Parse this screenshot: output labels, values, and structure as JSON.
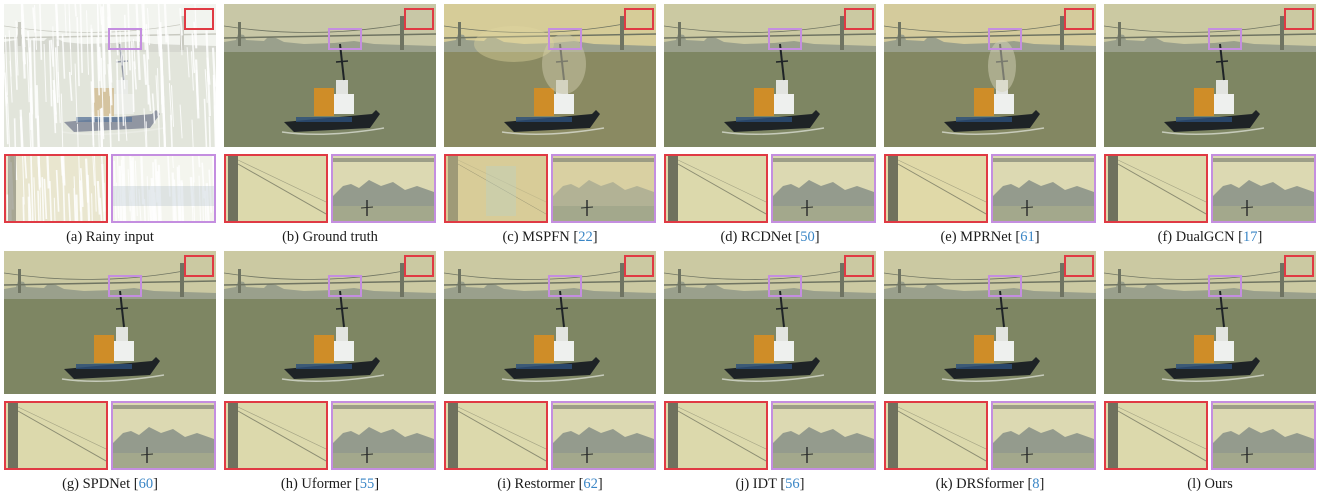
{
  "panels": [
    {
      "label": "(a) Rainy input",
      "ref": "",
      "variant": "rain"
    },
    {
      "label": "(b) Ground truth",
      "ref": "",
      "variant": "gt"
    },
    {
      "label": "(c) MSPFN [",
      "ref": "22",
      "variant": "mspfn"
    },
    {
      "label": "(d) RCDNet [",
      "ref": "50",
      "variant": "restored"
    },
    {
      "label": "(e) MPRNet [",
      "ref": "61",
      "variant": "mprnet"
    },
    {
      "label": "(f) DualGCN [",
      "ref": "17",
      "variant": "restored"
    },
    {
      "label": "(g) SPDNet [",
      "ref": "60",
      "variant": "restored"
    },
    {
      "label": "(h) Uformer [",
      "ref": "55",
      "variant": "restored"
    },
    {
      "label": "(i) Restormer [",
      "ref": "62",
      "variant": "restored"
    },
    {
      "label": "(j) IDT [",
      "ref": "56",
      "variant": "restored"
    },
    {
      "label": "(k) DRSformer [",
      "ref": "8",
      "variant": "restored"
    },
    {
      "label": "(l) Ours",
      "ref": "",
      "variant": "restored"
    }
  ],
  "colors": {
    "red_box": "#e03a44",
    "purple_box": "#c48ee0",
    "citation": "#3a86c6"
  }
}
